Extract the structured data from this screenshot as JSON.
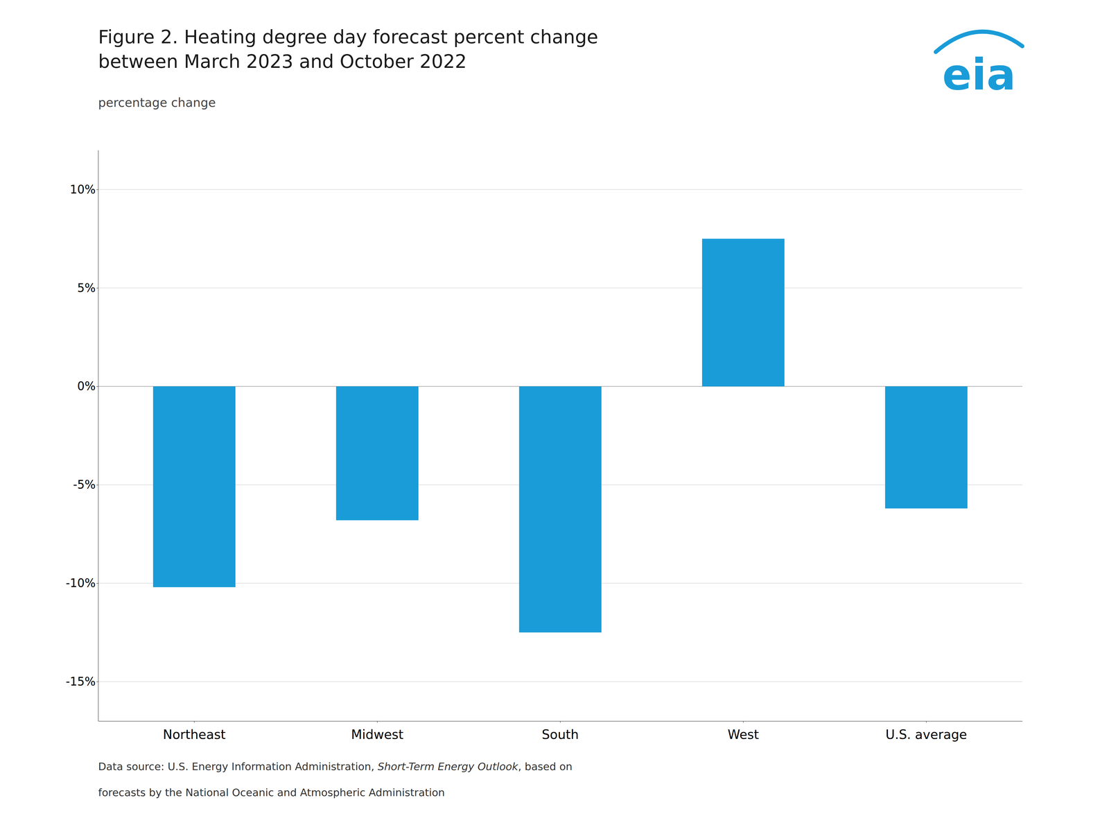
{
  "chart_data": {
    "type": "bar",
    "title": [
      "Figure 2. Heating degree day forecast percent change",
      "between March 2023 and October 2022"
    ],
    "subtitle": "percentage change",
    "categories": [
      "Northeast",
      "Midwest",
      "South",
      "West",
      "U.S. average"
    ],
    "values": [
      -10.2,
      -6.8,
      -12.5,
      7.5,
      -6.2
    ],
    "color": "#1a9cd8",
    "ylim": [
      -17,
      12
    ],
    "yticks": [
      {
        "value": -15,
        "label": "-15%"
      },
      {
        "value": -10,
        "label": "-10%"
      },
      {
        "value": -5,
        "label": "-5%"
      },
      {
        "value": 0,
        "label": "0%"
      },
      {
        "value": 5,
        "label": "5%"
      },
      {
        "value": 10,
        "label": "10%"
      }
    ],
    "grid": true,
    "logo": "eia",
    "footer": [
      [
        "Data source: U.S. Energy Information Administration, ",
        "Short-Term Energy Outlook",
        ", based on"
      ],
      [
        "forecasts by the National Oceanic and Atmospheric Administration"
      ]
    ]
  }
}
